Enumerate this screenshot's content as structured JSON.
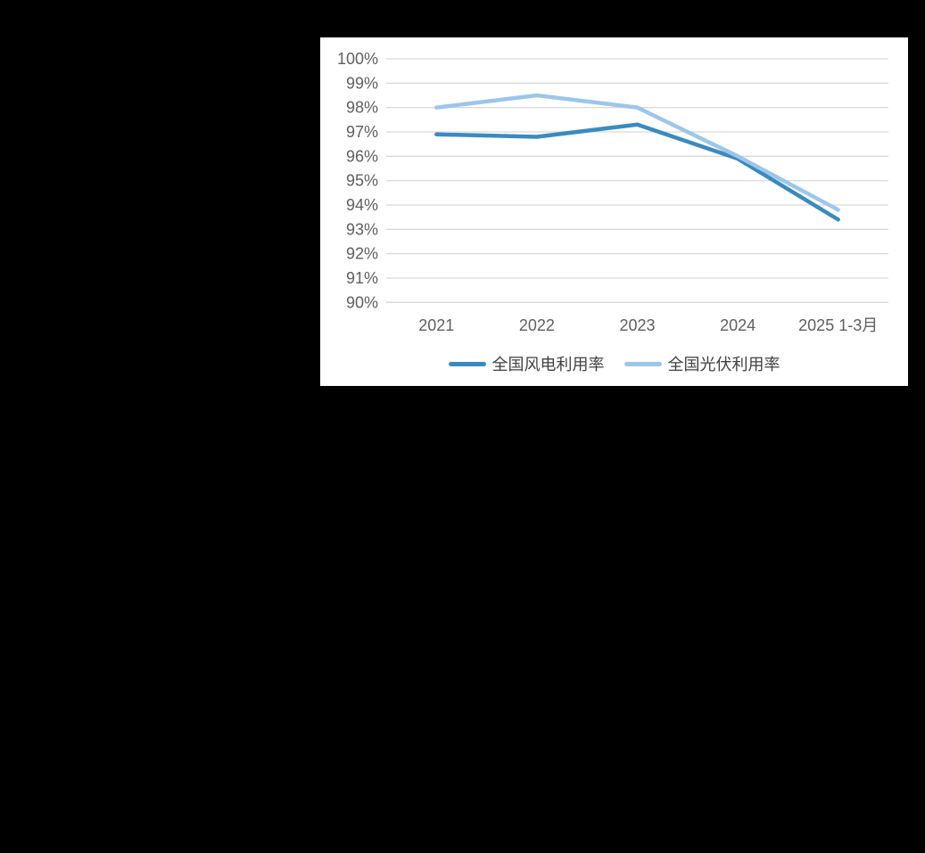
{
  "page": {
    "background_color": "#000000",
    "panel_background_color": "#ffffff"
  },
  "chart_data": {
    "type": "line",
    "categories": [
      "2021",
      "2022",
      "2023",
      "2024",
      "2025 1-3月"
    ],
    "series": [
      {
        "name": "全国风电利用率",
        "values": [
          96.9,
          96.8,
          97.3,
          95.9,
          93.4
        ],
        "color": "#3b8abf"
      },
      {
        "name": "全国光伏利用率",
        "values": [
          98.0,
          98.5,
          98.0,
          96.0,
          93.8
        ],
        "color": "#9dc6e9"
      }
    ],
    "title": "",
    "xlabel": "",
    "ylabel": "",
    "ylim": [
      90,
      100
    ],
    "ytick_step": 1,
    "ytick_labels": [
      "100%",
      "99%",
      "98%",
      "97%",
      "96%",
      "95%",
      "94%",
      "93%",
      "92%",
      "91%",
      "90%"
    ],
    "grid": true,
    "gridline_color": "#d9d9d9",
    "tick_label_color": "#5f5f5f",
    "legend_position": "bottom"
  }
}
